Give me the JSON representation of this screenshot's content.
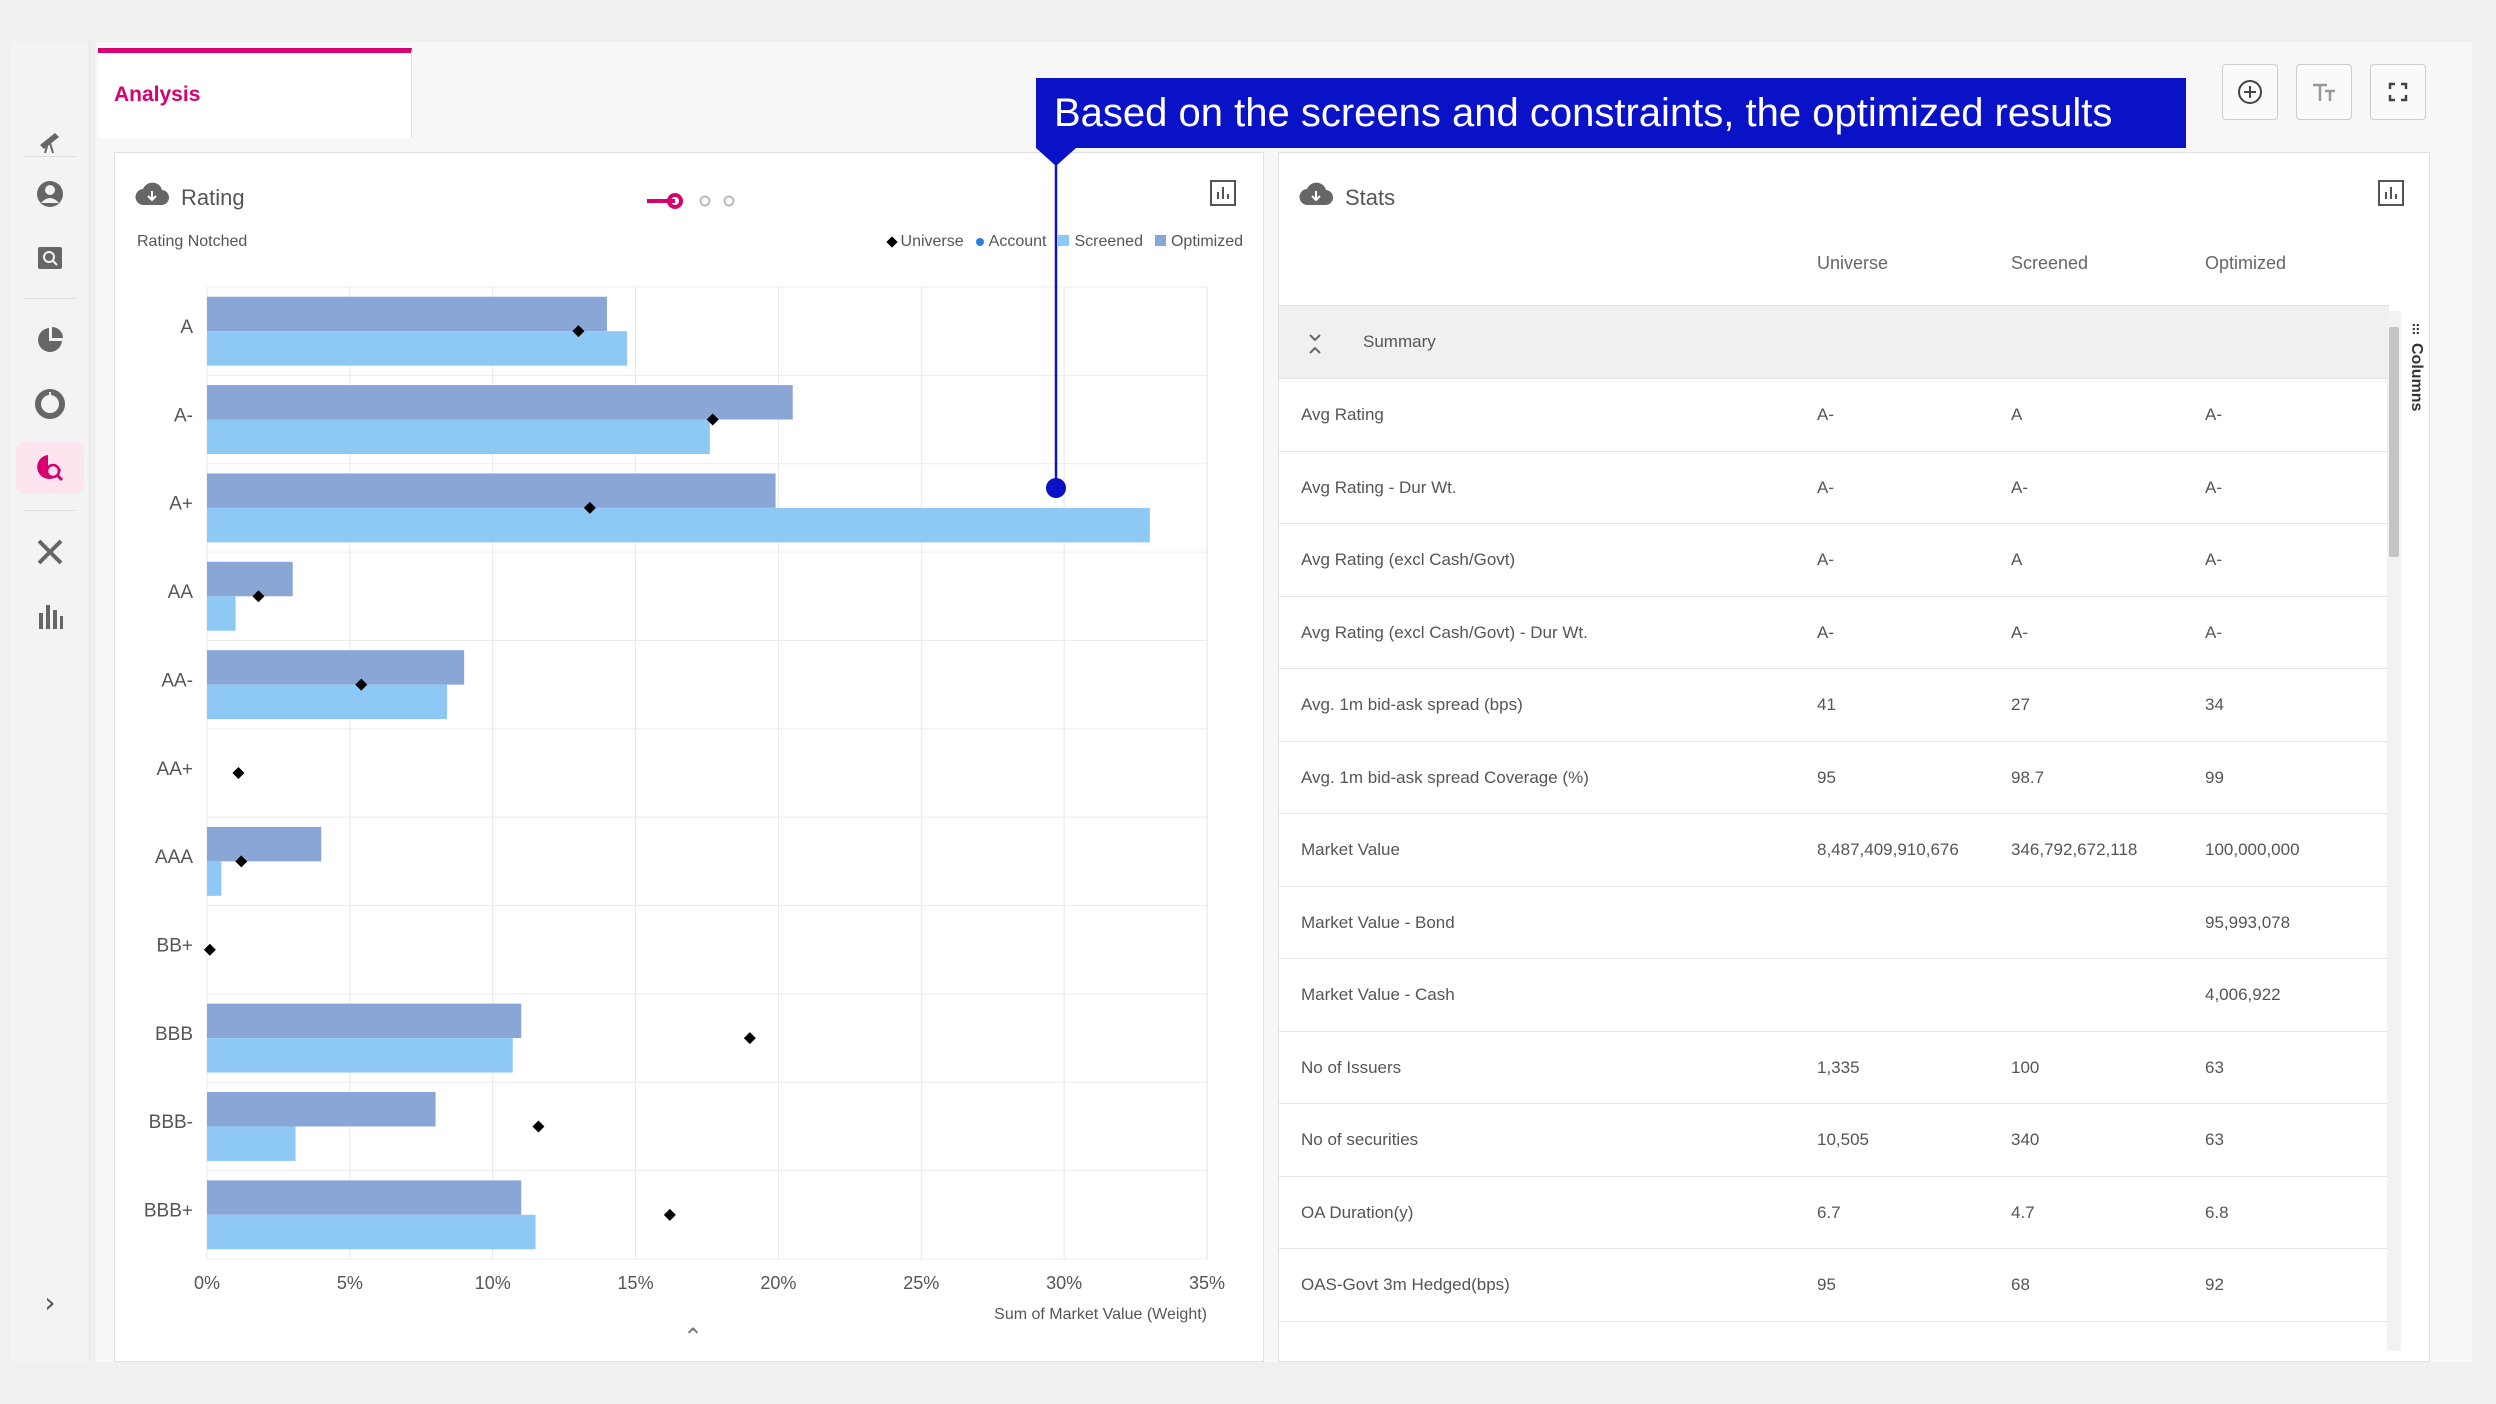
{
  "tab": {
    "label": "Analysis"
  },
  "callout": {
    "text": "Based on the screens and constraints, the optimized results"
  },
  "rating_panel": {
    "title": "Rating",
    "subtitle": "Rating Notched",
    "legend": [
      "Universe",
      "Account",
      "Screened",
      "Optimized"
    ]
  },
  "stats_panel": {
    "title": "Stats",
    "columns": [
      "Universe",
      "Screened",
      "Optimized"
    ],
    "group_label": "Summary",
    "side_label": "Columns",
    "rows": [
      {
        "label": "Avg Rating",
        "universe": "A-",
        "screened": "A",
        "optimized": "A-"
      },
      {
        "label": "Avg Rating - Dur Wt.",
        "universe": "A-",
        "screened": "A-",
        "optimized": "A-"
      },
      {
        "label": "Avg Rating (excl Cash/Govt)",
        "universe": "A-",
        "screened": "A",
        "optimized": "A-"
      },
      {
        "label": "Avg Rating (excl Cash/Govt) - Dur Wt.",
        "universe": "A-",
        "screened": "A-",
        "optimized": "A-"
      },
      {
        "label": "Avg. 1m bid-ask spread (bps)",
        "universe": "41",
        "screened": "27",
        "optimized": "34"
      },
      {
        "label": "Avg. 1m bid-ask spread Coverage (%)",
        "universe": "95",
        "screened": "98.7",
        "optimized": "99"
      },
      {
        "label": "Market Value",
        "universe": "8,487,409,910,676",
        "screened": "346,792,672,118",
        "optimized": "100,000,000"
      },
      {
        "label": "Market Value - Bond",
        "universe": "",
        "screened": "",
        "optimized": "95,993,078"
      },
      {
        "label": "Market Value - Cash",
        "universe": "",
        "screened": "",
        "optimized": "4,006,922"
      },
      {
        "label": "No of Issuers",
        "universe": "1,335",
        "screened": "100",
        "optimized": "63"
      },
      {
        "label": "No of securities",
        "universe": "10,505",
        "screened": "340",
        "optimized": "63"
      },
      {
        "label": "OA Duration(y)",
        "universe": "6.7",
        "screened": "4.7",
        "optimized": "6.8"
      },
      {
        "label": "OAS-Govt 3m Hedged(bps)",
        "universe": "95",
        "screened": "68",
        "optimized": "92"
      }
    ]
  },
  "chart_data": {
    "type": "bar",
    "orientation": "horizontal",
    "categories": [
      "A",
      "A-",
      "A+",
      "AA",
      "AA-",
      "AA+",
      "AAA",
      "BB+",
      "BBB",
      "BBB-",
      "BBB+"
    ],
    "series": [
      {
        "name": "Optimized",
        "values": [
          14.0,
          20.5,
          19.9,
          3.0,
          9.0,
          0,
          4.0,
          0,
          11.0,
          8.0,
          11.0
        ]
      },
      {
        "name": "Screened",
        "values": [
          14.7,
          17.6,
          33.0,
          1.0,
          8.4,
          0,
          0.5,
          0,
          10.7,
          3.1,
          11.5
        ]
      },
      {
        "name": "Universe",
        "marker": "diamond",
        "values": [
          13.0,
          17.7,
          13.4,
          1.8,
          5.4,
          1.1,
          1.2,
          0.1,
          19.0,
          11.6,
          16.2
        ]
      }
    ],
    "xlabel": "Sum of Market Value (Weight)",
    "xlim": [
      0,
      35
    ],
    "xticks": [
      "0%",
      "5%",
      "10%",
      "15%",
      "20%",
      "25%",
      "30%",
      "35%"
    ],
    "grid": true,
    "legend_position": "top-right",
    "colors": {
      "Optimized": "#8aa6d6",
      "Screened": "#8ec9f5",
      "Universe": "#000000",
      "Account": "#2b7de0"
    }
  },
  "colors": {
    "accent": "#d6006f",
    "callout": "#0a12c8"
  }
}
